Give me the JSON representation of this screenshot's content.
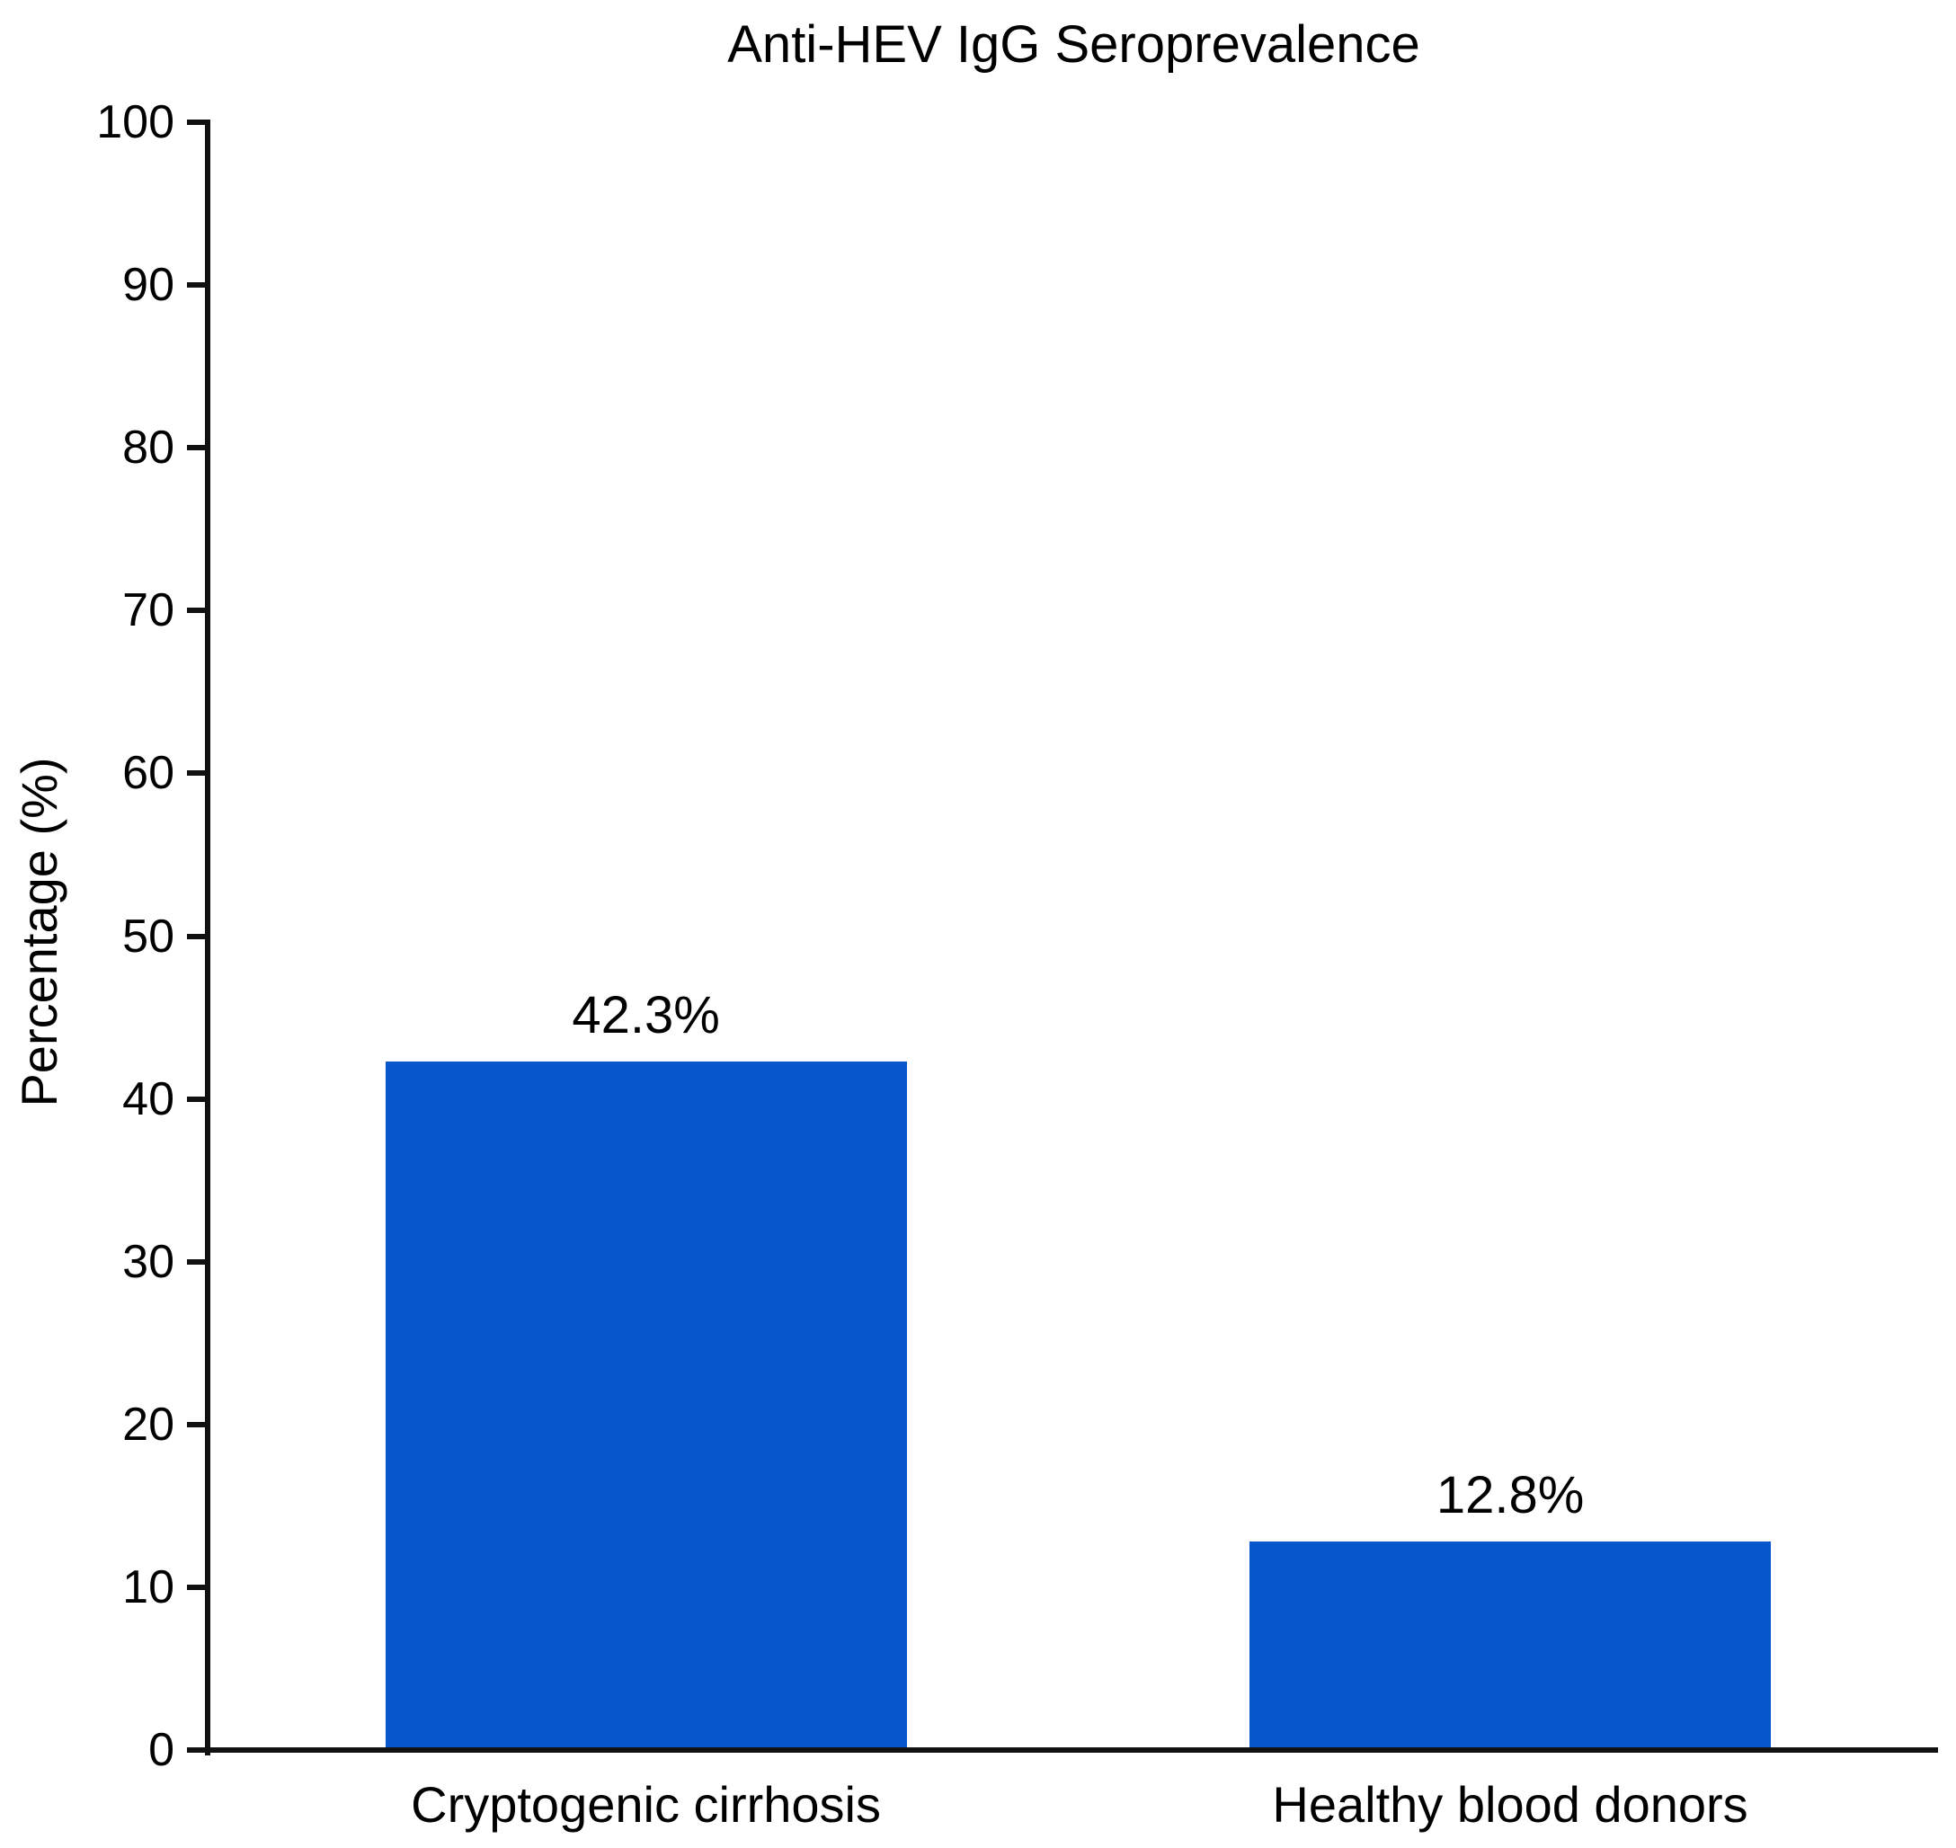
{
  "chart_data": {
    "type": "bar",
    "title": "Anti-HEV IgG Seroprevalence",
    "xlabel": "",
    "ylabel": "Percentage (%)",
    "categories": [
      "Cryptogenic cirrhosis",
      "Healthy blood donors"
    ],
    "values": [
      42.3,
      12.8
    ],
    "value_labels": [
      "42.3%",
      "12.8%"
    ],
    "ylim": [
      0,
      100
    ],
    "yticks": [
      0,
      10,
      20,
      30,
      40,
      50,
      60,
      70,
      80,
      90,
      100
    ],
    "grid": false,
    "legend": null,
    "colors": {
      "bar": "#0557CB",
      "axis": "#111111",
      "text": "#000000",
      "background": "#ffffff"
    }
  }
}
